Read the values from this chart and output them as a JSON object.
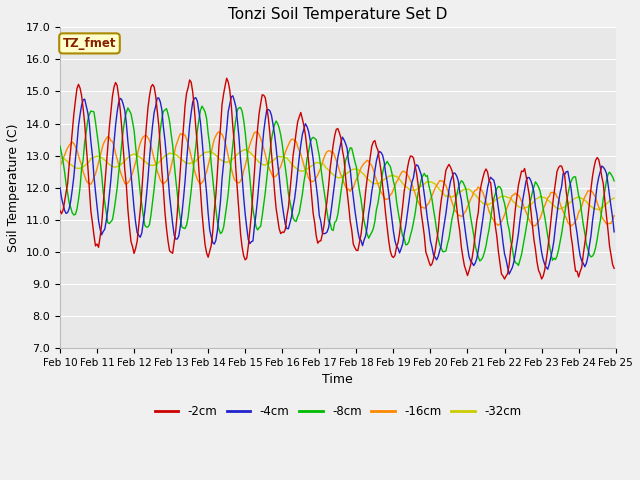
{
  "title": "Tonzi Soil Temperature Set D",
  "xlabel": "Time",
  "ylabel": "Soil Temperature (C)",
  "ylim": [
    7.0,
    17.0
  ],
  "yticks": [
    7.0,
    8.0,
    9.0,
    10.0,
    11.0,
    12.0,
    13.0,
    14.0,
    15.0,
    16.0,
    17.0
  ],
  "x_labels": [
    "Feb 10",
    "Feb 11",
    "Feb 12",
    "Feb 13",
    "Feb 14",
    "Feb 15",
    "Feb 16",
    "Feb 17",
    "Feb 18",
    "Feb 19",
    "Feb 20",
    "Feb 21",
    "Feb 22",
    "Feb 23",
    "Feb 24",
    "Feb 25"
  ],
  "series_colors": [
    "#cc0000",
    "#2222cc",
    "#00bb00",
    "#ff8800",
    "#cccc00"
  ],
  "series_labels": [
    "-2cm",
    "-4cm",
    "-8cm",
    "-16cm",
    "-32cm"
  ],
  "watermark": "TZ_fmet",
  "watermark_color": "#882200",
  "watermark_bg": "#ffffcc",
  "watermark_edge": "#aa8800",
  "plot_bg": "#e8e8e8",
  "fig_bg": "#f0f0f0",
  "grid_color": "#ffffff",
  "figsize": [
    6.4,
    4.8
  ],
  "dpi": 100
}
